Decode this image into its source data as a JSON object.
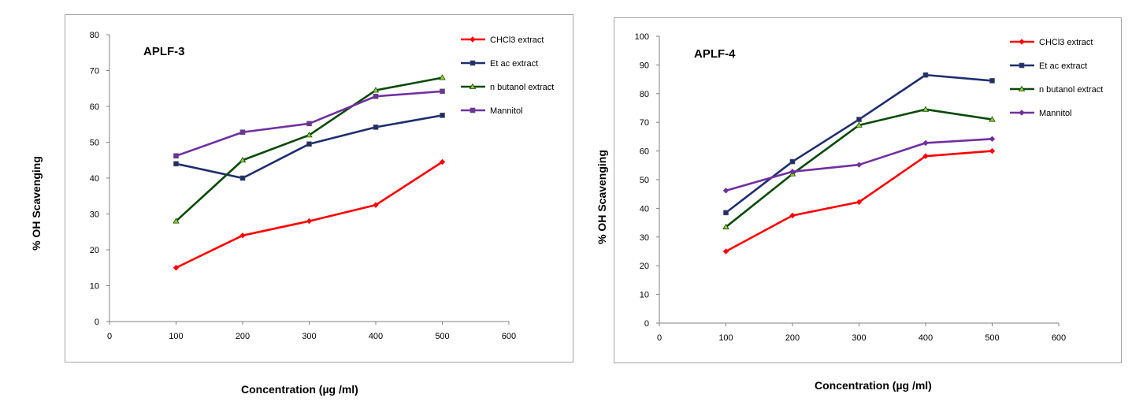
{
  "chart_data": [
    {
      "type": "line",
      "title": "APLF-3",
      "xlabel": "Concentration (µg /ml)",
      "ylabel": "% OH Scavenging",
      "xlim": [
        0,
        600
      ],
      "ylim": [
        0,
        80
      ],
      "xticks": [
        0,
        100,
        200,
        300,
        400,
        500,
        600
      ],
      "yticks": [
        0,
        10,
        20,
        30,
        40,
        50,
        60,
        70,
        80
      ],
      "x": [
        100,
        200,
        300,
        400,
        500
      ],
      "legend_position": "top-right",
      "series": [
        {
          "name": "CHCl3 extract",
          "color": "#ff0000",
          "marker": "diamond",
          "values": [
            15,
            24,
            28,
            32.5,
            44.5
          ]
        },
        {
          "name": "Et ac extract",
          "color": "#1f2e6e",
          "marker": "square",
          "values": [
            44,
            40,
            49.5,
            54.2,
            57.5
          ]
        },
        {
          "name": "n butanol extract",
          "color": "#0a4a0a",
          "marker": "triangle",
          "values": [
            28,
            45,
            52,
            64.5,
            68
          ]
        },
        {
          "name": "Mannitol",
          "color": "#7030a0",
          "marker": "square",
          "values": [
            46.2,
            52.8,
            55.2,
            62.8,
            64.2
          ]
        }
      ]
    },
    {
      "type": "line",
      "title": "APLF-4",
      "xlabel": "Concentration (µg /ml)",
      "ylabel": "% OH Scavenging",
      "xlim": [
        0,
        600
      ],
      "ylim": [
        0,
        100
      ],
      "xticks": [
        0,
        100,
        200,
        300,
        400,
        500,
        600
      ],
      "yticks": [
        0,
        10,
        20,
        30,
        40,
        50,
        60,
        70,
        80,
        90,
        100
      ],
      "x": [
        100,
        200,
        300,
        400,
        500
      ],
      "legend_position": "top-right",
      "series": [
        {
          "name": "CHCl3 extract",
          "color": "#ff0000",
          "marker": "diamond",
          "values": [
            25,
            37.5,
            42.2,
            58.2,
            60
          ]
        },
        {
          "name": "Et ac extract",
          "color": "#1f2e6e",
          "marker": "square",
          "values": [
            38.5,
            56.3,
            71,
            86.5,
            84.5
          ]
        },
        {
          "name": "n butanol extract",
          "color": "#0a4a0a",
          "marker": "triangle",
          "values": [
            33.5,
            52,
            69,
            74.5,
            71
          ]
        },
        {
          "name": "Mannitol",
          "color": "#7030a0",
          "marker": "diamond",
          "values": [
            46.2,
            52.8,
            55.2,
            62.8,
            64.2
          ]
        }
      ]
    }
  ]
}
